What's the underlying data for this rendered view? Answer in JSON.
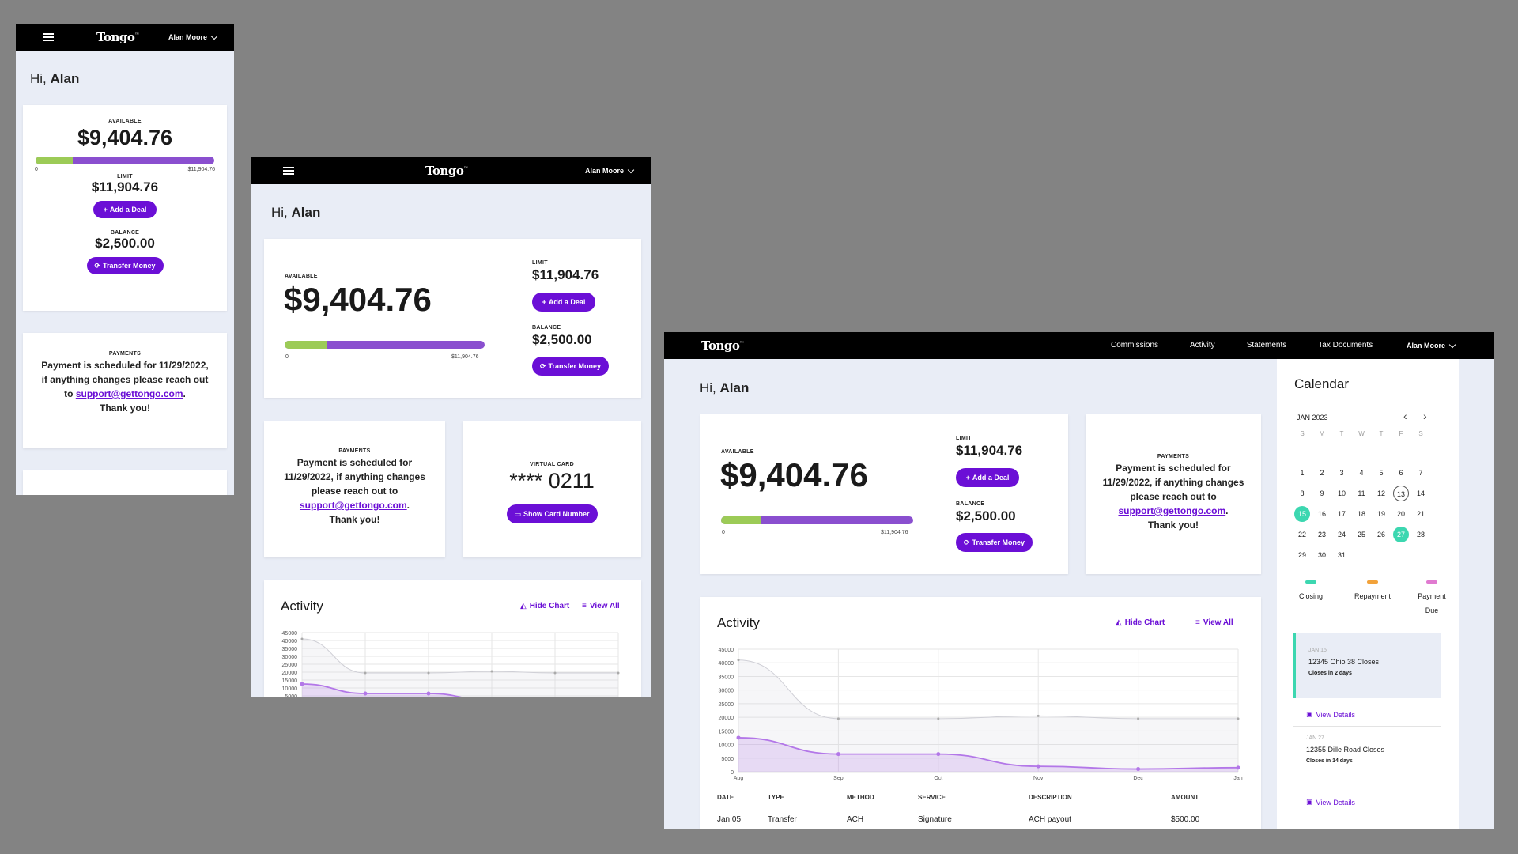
{
  "brand": "Tongo",
  "user": "Alan Moore",
  "greeting": {
    "hi": "Hi,",
    "name": "Alan"
  },
  "available": {
    "label": "AVAILABLE",
    "amount": "$9,404.76",
    "fill_fraction": 0.21,
    "min": "0",
    "max": "$11,904.76"
  },
  "limit": {
    "label": "LIMIT",
    "amount": "$11,904.76",
    "button": "Add a Deal"
  },
  "balance": {
    "label": "BALANCE",
    "amount": "$2,500.00",
    "button": "Transfer Money"
  },
  "payments": {
    "label": "PAYMENTS",
    "line1": "Payment is scheduled for 11/29/2022, if anything changes please reach out to",
    "email": "support@gettongo.com",
    "thanks": "Thank you!"
  },
  "virtual_card": {
    "label": "VIRTUAL CARD",
    "number": "**** 0211",
    "button": "Show Card Number"
  },
  "nav": [
    "Commissions",
    "Activity",
    "Statements",
    "Tax Documents"
  ],
  "activity": {
    "title": "Activity",
    "hide_chart": "Hide Chart",
    "view_all": "View All",
    "columns": [
      "DATE",
      "TYPE",
      "METHOD",
      "SERVICE",
      "DESCRIPTION",
      "AMOUNT"
    ],
    "rows": [
      [
        "Jan 05",
        "Transfer",
        "ACH",
        "Signature",
        "ACH payout",
        "$500.00"
      ]
    ]
  },
  "chart_data": {
    "type": "area",
    "categories": [
      "Aug",
      "Sep",
      "Oct",
      "Nov",
      "Dec",
      "Jan"
    ],
    "y_ticks": [
      "45000",
      "40000",
      "35000",
      "30000",
      "25000",
      "20000",
      "15000",
      "10000",
      "5000",
      "0"
    ],
    "ylim": [
      0,
      45000
    ],
    "grid": true,
    "series": [
      {
        "values": [
          41000,
          19500,
          19500,
          20500,
          19500,
          19500
        ],
        "color": "#cfcfd6"
      },
      {
        "values": [
          12500,
          6500,
          6500,
          2000,
          1000,
          1500
        ],
        "color": "#b377e8"
      }
    ]
  },
  "calendar": {
    "title": "Calendar",
    "month": "JAN 2023",
    "dow": [
      "S",
      "M",
      "T",
      "W",
      "T",
      "F",
      "S"
    ],
    "lead_blanks": 0,
    "days": [
      "1",
      "2",
      "3",
      "4",
      "5",
      "6",
      "7",
      "8",
      "9",
      "10",
      "11",
      "12",
      "13",
      "14",
      "15",
      "16",
      "17",
      "18",
      "19",
      "20",
      "21",
      "22",
      "23",
      "24",
      "25",
      "26",
      "27",
      "28",
      "29",
      "30",
      "31"
    ],
    "today": "13",
    "highlighted": [
      "15",
      "27"
    ],
    "legend": [
      {
        "label": "Closing",
        "color": "#3cd7b0"
      },
      {
        "label": "Repayment",
        "color": "#f2a23a"
      },
      {
        "label": "Payment Due",
        "color": "#e07ad0"
      }
    ],
    "events": [
      {
        "date": "JAN 15",
        "title": "12345 Ohio 38 Closes",
        "sub": "Closes in 2 days",
        "link": "View Details"
      },
      {
        "date": "JAN 27",
        "title": "12355 Dille Road Closes",
        "sub": "Closes in 14 days",
        "link": "View Details"
      }
    ]
  }
}
